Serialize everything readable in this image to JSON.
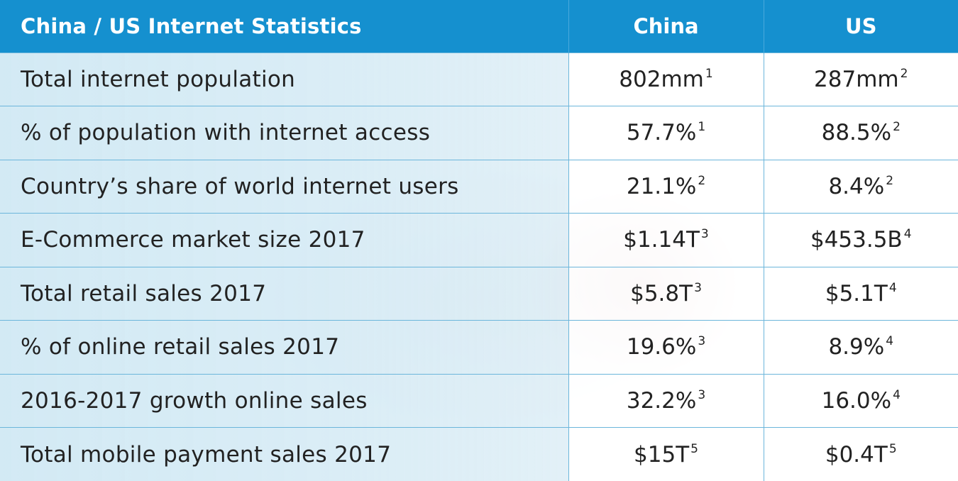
{
  "table": {
    "header": {
      "title": "China / US Internet Statistics",
      "china": "China",
      "us": "US"
    },
    "rows": [
      {
        "label": "Total internet population",
        "china": "802mm",
        "china_note": "1",
        "us": "287mm",
        "us_note": "2"
      },
      {
        "label": "% of population with internet access",
        "china": "57.7%",
        "china_note": "1",
        "us": "88.5%",
        "us_note": "2"
      },
      {
        "label": "Country’s share of world internet users",
        "china": "21.1%",
        "china_note": "2",
        "us": "8.4%",
        "us_note": "2"
      },
      {
        "label": "E-Commerce market size 2017",
        "china": "$1.14T",
        "china_note": "3",
        "us": "$453.5B",
        "us_note": "4"
      },
      {
        "label": "Total retail sales 2017",
        "china": "$5.8T",
        "china_note": "3",
        "us": "$5.1T",
        "us_note": "4"
      },
      {
        "label": "% of online retail sales 2017",
        "china": "19.6%",
        "china_note": "3",
        "us": "8.9%",
        "us_note": "4"
      },
      {
        "label": "2016-2017 growth online sales",
        "china": "32.2%",
        "china_note": "3",
        "us": "16.0%",
        "us_note": "4"
      },
      {
        "label": "Total mobile payment sales 2017",
        "china": "$15T",
        "china_note": "5",
        "us": "$0.4T",
        "us_note": "5"
      }
    ]
  },
  "colors": {
    "header_bg": "#1590cf",
    "header_text": "#ffffff",
    "label_cell_bg": "#d3eaf5",
    "grid_line": "#6cb6db",
    "body_text": "#222222"
  }
}
